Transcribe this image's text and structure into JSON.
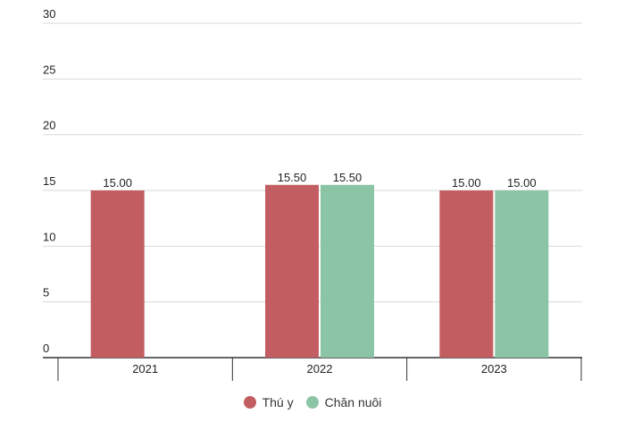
{
  "chart_data": {
    "type": "bar",
    "title": "",
    "xlabel": "",
    "ylabel": "",
    "categories": [
      "2021",
      "2022",
      "2023"
    ],
    "ylim": [
      0,
      30
    ],
    "yticks": [
      0,
      5,
      10,
      15,
      20,
      25,
      30
    ],
    "grid": true,
    "legend_position": "bottom",
    "series": [
      {
        "name": "Thú y",
        "color": "#c25e61",
        "values": [
          15.0,
          15.5,
          15.0
        ],
        "labels": [
          "15.00",
          "15.50",
          "15.00"
        ]
      },
      {
        "name": "Chăn nuôi",
        "color": "#8cc4a6",
        "values": [
          null,
          15.5,
          15.0
        ],
        "labels": [
          "",
          "15.50",
          "15.00"
        ]
      }
    ]
  }
}
